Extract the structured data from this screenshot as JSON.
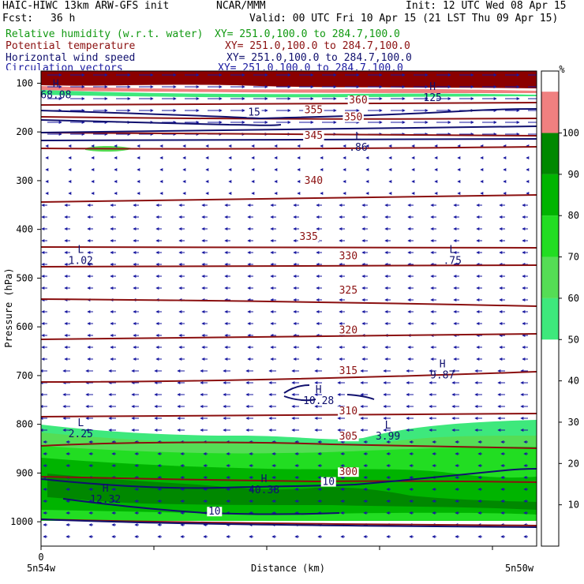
{
  "header": {
    "model": "HAIC-HIWC 13km ARW-GFS init",
    "institution": "NCAR/MMM",
    "init": "Init: 12 UTC Wed 08 Apr 15",
    "fcst_label": "Fcst:",
    "fcst_value": "36 h",
    "valid": "Valid: 00 UTC Fri 10 Apr 15 (21 LST Thu 09 Apr 15)",
    "fields": [
      {
        "name": "Relative humidity (w.r.t. water)",
        "xy": "XY= 251.0,100.0 to 284.7,100.0",
        "color": "#119911"
      },
      {
        "name": "Potential temperature",
        "xy": "XY= 251.0,100.0 to 284.7,100.0",
        "color": "#8b1010"
      },
      {
        "name": "Horizontal wind speed",
        "xy": "XY= 251.0,100.0 to 284.7,100.0",
        "color": "#10106e"
      },
      {
        "name": "Circulation vectors",
        "xy": "XY= 251.0,100.0 to 284.7,100.0",
        "color": "#1a1aa0"
      }
    ]
  },
  "chart_data": {
    "type": "heatmap",
    "title": "",
    "xlabel": "Distance (km)",
    "ylabel": "Pressure (hPa)",
    "x_tick_labels": [
      "0"
    ],
    "x_end_labels": [
      "5n54w",
      "5n50w"
    ],
    "y_ticks": [
      100,
      200,
      300,
      400,
      500,
      600,
      700,
      800,
      900,
      1000
    ],
    "ylim": [
      1050,
      75
    ],
    "colorbar": {
      "unit": "%",
      "ticks": [
        10,
        20,
        30,
        40,
        50,
        60,
        70,
        80,
        90,
        100
      ],
      "bins": [
        {
          "from": 50,
          "to": 60,
          "color": "#3ee87c"
        },
        {
          "from": 60,
          "to": 70,
          "color": "#55dd55"
        },
        {
          "from": 70,
          "to": 80,
          "color": "#22dd22"
        },
        {
          "from": 80,
          "to": 90,
          "color": "#00b400"
        },
        {
          "from": 90,
          "to": 100,
          "color": "#008800"
        },
        {
          "from": 100,
          "to": 110,
          "color": "#f08080"
        }
      ],
      "top_bin_color": "#8b0000"
    },
    "theta_labels": [
      {
        "text": "360",
        "x": 0.64,
        "p": 140
      },
      {
        "text": "355",
        "x": 0.55,
        "p": 160
      },
      {
        "text": "350",
        "x": 0.63,
        "p": 175
      },
      {
        "text": "345",
        "x": 0.55,
        "p": 213
      },
      {
        "text": "340",
        "x": 0.55,
        "p": 305
      },
      {
        "text": "335",
        "x": 0.54,
        "p": 420
      },
      {
        "text": "330",
        "x": 0.62,
        "p": 460
      },
      {
        "text": "325",
        "x": 0.62,
        "p": 530
      },
      {
        "text": "320",
        "x": 0.62,
        "p": 612
      },
      {
        "text": "315",
        "x": 0.62,
        "p": 695
      },
      {
        "text": "310",
        "x": 0.62,
        "p": 778
      },
      {
        "text": "305",
        "x": 0.62,
        "p": 830
      },
      {
        "text": "300",
        "x": 0.62,
        "p": 903
      }
    ],
    "wind_labels": [
      {
        "text": "15",
        "x": 0.43,
        "p": 165
      },
      {
        "text": "10",
        "x": 0.58,
        "p": 923
      },
      {
        "text": "10",
        "x": 0.35,
        "p": 984
      }
    ],
    "extrema": [
      {
        "kind": "H",
        "value": "68.08",
        "x": 0.03,
        "p": 115
      },
      {
        "kind": "H",
        "value": "125",
        "x": 0.79,
        "p": 120
      },
      {
        "kind": "L",
        "value": ".86",
        "x": 0.64,
        "p": 222
      },
      {
        "kind": "L",
        "value": "1.02",
        "x": 0.08,
        "p": 455
      },
      {
        "kind": "L",
        "value": ".75",
        "x": 0.83,
        "p": 455
      },
      {
        "kind": "H",
        "value": "9.87",
        "x": 0.81,
        "p": 690
      },
      {
        "kind": "H",
        "value": "10.28",
        "x": 0.56,
        "p": 742
      },
      {
        "kind": "L",
        "value": "2.25",
        "x": 0.08,
        "p": 810
      },
      {
        "kind": "L",
        "value": "3.99",
        "x": 0.7,
        "p": 815
      },
      {
        "kind": "H",
        "value": "40.38",
        "x": 0.45,
        "p": 925
      },
      {
        "kind": "H",
        "value": "12.32",
        "x": 0.13,
        "p": 945
      }
    ]
  }
}
